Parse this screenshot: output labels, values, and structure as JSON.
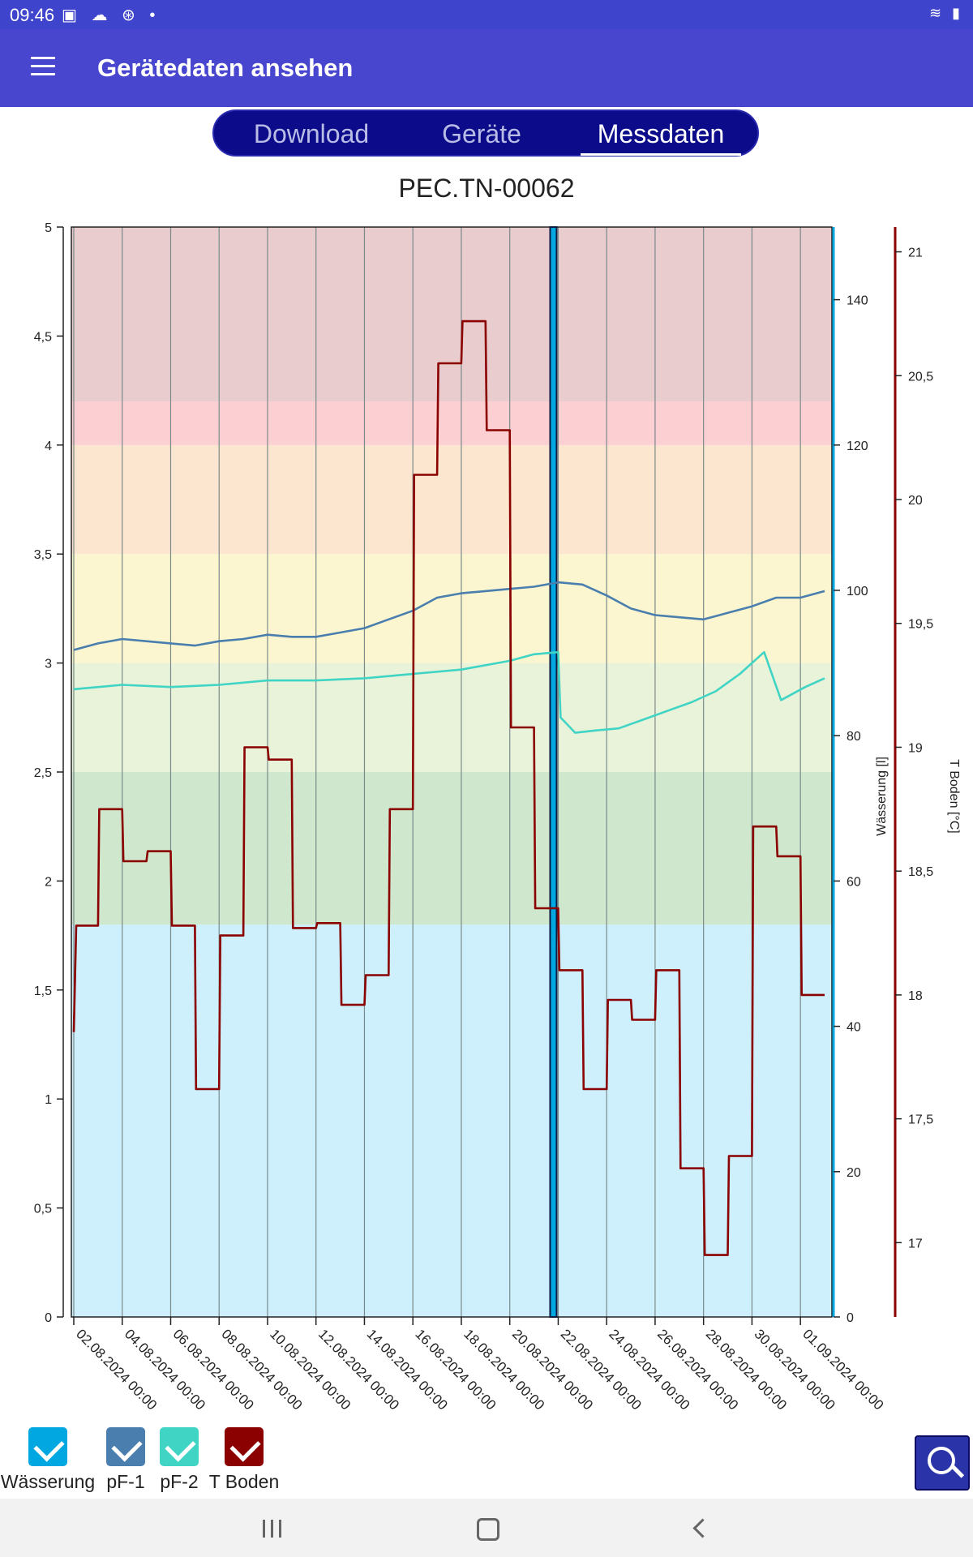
{
  "status_bar": {
    "time": "09:46",
    "icons": [
      "image-icon",
      "cloud-icon",
      "sync-icon",
      "dot-icon"
    ],
    "right_icons": [
      "wifi-icon",
      "battery-icon"
    ]
  },
  "app_bar": {
    "title": "Gerätedaten ansehen"
  },
  "tabs": [
    {
      "label": "Download",
      "active": false
    },
    {
      "label": "Geräte",
      "active": false
    },
    {
      "label": "Messdaten",
      "active": true
    }
  ],
  "chart_title": "PEC.TN-00062",
  "chart_data": {
    "type": "line",
    "title": "PEC.TN-00062",
    "x_ticks": [
      "02.08.2024 00:00",
      "04.08.2024 00:00",
      "06.08.2024 00:00",
      "08.08.2024 00:00",
      "10.08.2024 00:00",
      "12.08.2024 00:00",
      "14.08.2024 00:00",
      "16.08.2024 00:00",
      "18.08.2024 00:00",
      "20.08.2024 00:00",
      "22.08.2024 00:00",
      "24.08.2024 00:00",
      "26.08.2024 00:00",
      "28.08.2024 00:00",
      "30.08.2024 00:00",
      "01.09.2024 00:00"
    ],
    "x_range_days": [
      -0.1,
      31.3
    ],
    "y_left": {
      "ticks": [
        "0",
        "0,5",
        "1",
        "1,5",
        "2",
        "2,5",
        "3",
        "3,5",
        "4",
        "4,5",
        "5"
      ],
      "range": [
        0,
        5
      ]
    },
    "y_right1": {
      "label": "Wässerung [l]",
      "ticks": [
        "0",
        "20",
        "40",
        "60",
        "80",
        "100",
        "120",
        "140"
      ],
      "range": [
        0,
        150
      ],
      "color": "#00a7e1"
    },
    "y_right2": {
      "label": "T Boden [°C]",
      "ticks": [
        "17",
        "17,5",
        "18",
        "18,5",
        "19",
        "19,5",
        "20",
        "20,5",
        "21"
      ],
      "range": [
        16.7,
        21.1
      ],
      "color": "#8b0000"
    },
    "bands": [
      {
        "from": 0,
        "to": 1.8,
        "color": "#cdf0fc"
      },
      {
        "from": 1.8,
        "to": 2.5,
        "color": "#cfe7cd"
      },
      {
        "from": 2.5,
        "to": 3.0,
        "color": "#e9f3da"
      },
      {
        "from": 3.0,
        "to": 3.5,
        "color": "#fbf6cf"
      },
      {
        "from": 3.5,
        "to": 4.0,
        "color": "#fde6cf"
      },
      {
        "from": 4.0,
        "to": 4.2,
        "color": "#fccfd2"
      },
      {
        "from": 4.2,
        "to": 5.0,
        "color": "#e8ccce"
      }
    ],
    "grid": "vertical",
    "series": [
      {
        "name": "Wässerung",
        "color": "#00a7e1",
        "axis": "right1",
        "type": "bar",
        "points": [
          [
            19.8,
            150
          ]
        ]
      },
      {
        "name": "pF-1",
        "color": "#4a7eae",
        "axis": "left",
        "points": [
          [
            0,
            3.06
          ],
          [
            1,
            3.09
          ],
          [
            2,
            3.11
          ],
          [
            3,
            3.1
          ],
          [
            4,
            3.09
          ],
          [
            5,
            3.08
          ],
          [
            6,
            3.1
          ],
          [
            7,
            3.11
          ],
          [
            8,
            3.13
          ],
          [
            9,
            3.12
          ],
          [
            10,
            3.12
          ],
          [
            11,
            3.14
          ],
          [
            12,
            3.16
          ],
          [
            13,
            3.2
          ],
          [
            14,
            3.24
          ],
          [
            15,
            3.3
          ],
          [
            16,
            3.32
          ],
          [
            17,
            3.33
          ],
          [
            18,
            3.34
          ],
          [
            19,
            3.35
          ],
          [
            20,
            3.37
          ],
          [
            21,
            3.36
          ],
          [
            22,
            3.31
          ],
          [
            23,
            3.25
          ],
          [
            24,
            3.22
          ],
          [
            25,
            3.21
          ],
          [
            26,
            3.2
          ],
          [
            27,
            3.23
          ],
          [
            28,
            3.26
          ],
          [
            29,
            3.3
          ],
          [
            30,
            3.3
          ],
          [
            31,
            3.33
          ]
        ]
      },
      {
        "name": "pF-2",
        "color": "#40d4c4",
        "axis": "left",
        "points": [
          [
            0,
            2.88
          ],
          [
            2,
            2.9
          ],
          [
            4,
            2.89
          ],
          [
            6,
            2.9
          ],
          [
            8,
            2.92
          ],
          [
            10,
            2.92
          ],
          [
            12,
            2.93
          ],
          [
            14,
            2.95
          ],
          [
            16,
            2.97
          ],
          [
            18,
            3.01
          ],
          [
            19,
            3.04
          ],
          [
            20,
            3.05
          ],
          [
            20.1,
            2.75
          ],
          [
            20.7,
            2.68
          ],
          [
            21.5,
            2.69
          ],
          [
            22.5,
            2.7
          ],
          [
            23.5,
            2.74
          ],
          [
            24.5,
            2.78
          ],
          [
            25.5,
            2.82
          ],
          [
            26.5,
            2.87
          ],
          [
            27.5,
            2.95
          ],
          [
            28.5,
            3.05
          ],
          [
            29.2,
            2.83
          ],
          [
            30.2,
            2.89
          ],
          [
            31,
            2.93
          ]
        ]
      },
      {
        "name": "T Boden",
        "color": "#8b0000",
        "axis": "right2",
        "points": [
          [
            0,
            17.85
          ],
          [
            0.1,
            18.28
          ],
          [
            1,
            18.28
          ],
          [
            1.05,
            18.75
          ],
          [
            2,
            18.75
          ],
          [
            2.05,
            18.54
          ],
          [
            3,
            18.54
          ],
          [
            3.05,
            18.58
          ],
          [
            4,
            18.58
          ],
          [
            4.05,
            18.28
          ],
          [
            5,
            18.28
          ],
          [
            5.05,
            17.62
          ],
          [
            6,
            17.62
          ],
          [
            6.05,
            18.24
          ],
          [
            7,
            18.24
          ],
          [
            7.05,
            19.0
          ],
          [
            8,
            19.0
          ],
          [
            8.05,
            18.95
          ],
          [
            9,
            18.95
          ],
          [
            9.05,
            18.27
          ],
          [
            10,
            18.27
          ],
          [
            10.05,
            18.29
          ],
          [
            11,
            18.29
          ],
          [
            11.05,
            17.96
          ],
          [
            12,
            17.96
          ],
          [
            12.05,
            18.08
          ],
          [
            13,
            18.08
          ],
          [
            13.05,
            18.75
          ],
          [
            14,
            18.75
          ],
          [
            14.05,
            20.1
          ],
          [
            15,
            20.1
          ],
          [
            15.05,
            20.55
          ],
          [
            16,
            20.55
          ],
          [
            16.05,
            20.72
          ],
          [
            17,
            20.72
          ],
          [
            17.05,
            20.28
          ],
          [
            18,
            20.28
          ],
          [
            18.05,
            19.08
          ],
          [
            19,
            19.08
          ],
          [
            19.05,
            18.35
          ],
          [
            20,
            18.35
          ],
          [
            20.05,
            18.1
          ],
          [
            21,
            18.1
          ],
          [
            21.05,
            17.62
          ],
          [
            22,
            17.62
          ],
          [
            22.05,
            17.98
          ],
          [
            23,
            17.98
          ],
          [
            23.05,
            17.9
          ],
          [
            24,
            17.9
          ],
          [
            24.05,
            18.1
          ],
          [
            25,
            18.1
          ],
          [
            25.05,
            17.3
          ],
          [
            26,
            17.3
          ],
          [
            26.05,
            16.95
          ],
          [
            27,
            16.95
          ],
          [
            27.05,
            17.35
          ],
          [
            28,
            17.35
          ],
          [
            28.05,
            18.68
          ],
          [
            29,
            18.68
          ],
          [
            29.05,
            18.56
          ],
          [
            30,
            18.56
          ],
          [
            30.05,
            18.0
          ],
          [
            31,
            18.0
          ]
        ]
      }
    ]
  },
  "legend": [
    {
      "label": "Wässerung",
      "color": "#00a7e1"
    },
    {
      "label": "pF-1",
      "color": "#4a7eae"
    },
    {
      "label": "pF-2",
      "color": "#40d4c4"
    },
    {
      "label": "T Boden",
      "color": "#8b0000"
    }
  ],
  "zoom_button_icon": "zoom-reset-icon",
  "nav_bar": {
    "recent_icon": "recent-apps-icon",
    "home_icon": "home-icon",
    "back_icon": "back-icon"
  }
}
